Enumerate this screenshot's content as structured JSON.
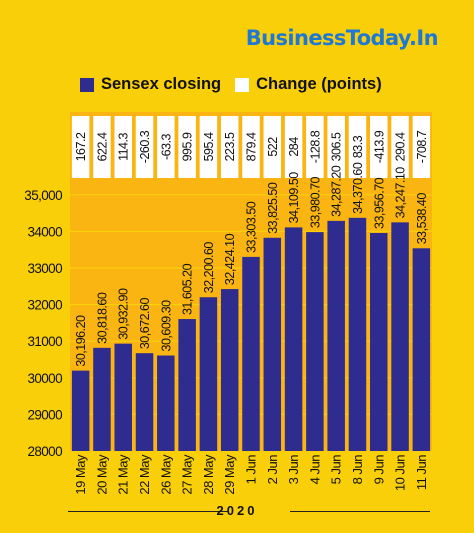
{
  "brand": "BusinessToday.In",
  "legend": {
    "series1": "Sensex closing",
    "series2": "Change (points)"
  },
  "colors": {
    "background": "#F9CF0A",
    "bar": "#2E2C8F",
    "band": "#FBB513",
    "brand": "#1F78D1"
  },
  "chart_data": {
    "type": "bar",
    "categories": [
      "19 May",
      "20 May",
      "21 May",
      "22 May",
      "26 May",
      "27 May",
      "28 May",
      "29 May",
      "1 Jun",
      "2 Jun",
      "3 Jun",
      "4 Jun",
      "5 Jun",
      "8 Jun",
      "9 Jun",
      "10 Jun",
      "11 Jun"
    ],
    "series": [
      {
        "name": "Sensex closing",
        "values": [
          30196.2,
          30818.6,
          30932.9,
          30672.6,
          30609.3,
          31605.2,
          32200.6,
          32424.1,
          33303.5,
          33825.5,
          34109.5,
          33980.7,
          34287.2,
          34370.6,
          33956.7,
          34247.1,
          33538.4
        ],
        "labels": [
          "30,196.20",
          "30,818.60",
          "30,932.90",
          "30,672.60",
          "30,609.30",
          "31,605.20",
          "32,200.60",
          "32,424.10",
          "33,303.50",
          "33,825.50",
          "34,109.50",
          "33,980.70",
          "34,287.20",
          "34,370.60",
          "33,956.70",
          "34,247.10",
          "33,538.40"
        ]
      },
      {
        "name": "Change (points)",
        "values": [
          167.2,
          622.4,
          114.3,
          -260.3,
          -63.3,
          995.9,
          595.4,
          223.5,
          879.4,
          522,
          284,
          -128.8,
          306.5,
          83.3,
          -413.9,
          290.4,
          -708.7
        ],
        "labels": [
          "167.2",
          "622.4",
          "114.3",
          "-260.3",
          "-63.3",
          "995.9",
          "595.4",
          "223.5",
          "879.4",
          "522",
          "284",
          "-128.8",
          "306.5",
          "83.3",
          "-413.9",
          "290.4",
          "-708.7"
        ]
      }
    ],
    "yticks": [
      "28000",
      "29000",
      "30000",
      "31000",
      "32000",
      "33000",
      "34000",
      "35,000"
    ],
    "ytick_values": [
      28000,
      29000,
      30000,
      31000,
      32000,
      33000,
      34000,
      35000
    ],
    "ylim": [
      28000,
      35300
    ],
    "xlabel": "2020",
    "grid": true
  }
}
